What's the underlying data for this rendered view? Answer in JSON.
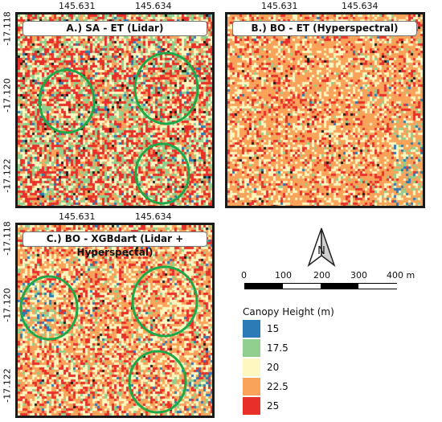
{
  "panels": [
    {
      "id": "A",
      "title": "A.) SA - ET (Lidar)",
      "x_ticks": [
        "145.631",
        "145.634"
      ],
      "y_ticks": [
        "-17.118",
        "-17.120",
        "-17.122"
      ]
    },
    {
      "id": "B",
      "title": "B.) BO - ET (Hyperspectral)",
      "x_ticks": [
        "145.631",
        "145.634"
      ],
      "y_ticks": []
    },
    {
      "id": "C",
      "title": "C.) BO - XGBdart (Lidar + Hyperspectal)",
      "x_ticks": [
        "145.631",
        "145.634"
      ],
      "y_ticks": [
        "-17.118",
        "-17.120",
        "-17.122"
      ]
    }
  ],
  "north_arrow": {
    "label": "N"
  },
  "scale_bar": {
    "labels": [
      "0",
      "100",
      "200",
      "300",
      "400 m"
    ]
  },
  "legend": {
    "title": "Canopy Height (m)",
    "items": [
      {
        "label": "15",
        "color": "#2c7bb6"
      },
      {
        "label": "17.5",
        "color": "#91cf8e"
      },
      {
        "label": "20",
        "color": "#fdf7c0"
      },
      {
        "label": "22.5",
        "color": "#f9a35a"
      },
      {
        "label": "25",
        "color": "#e8302a"
      }
    ]
  }
}
